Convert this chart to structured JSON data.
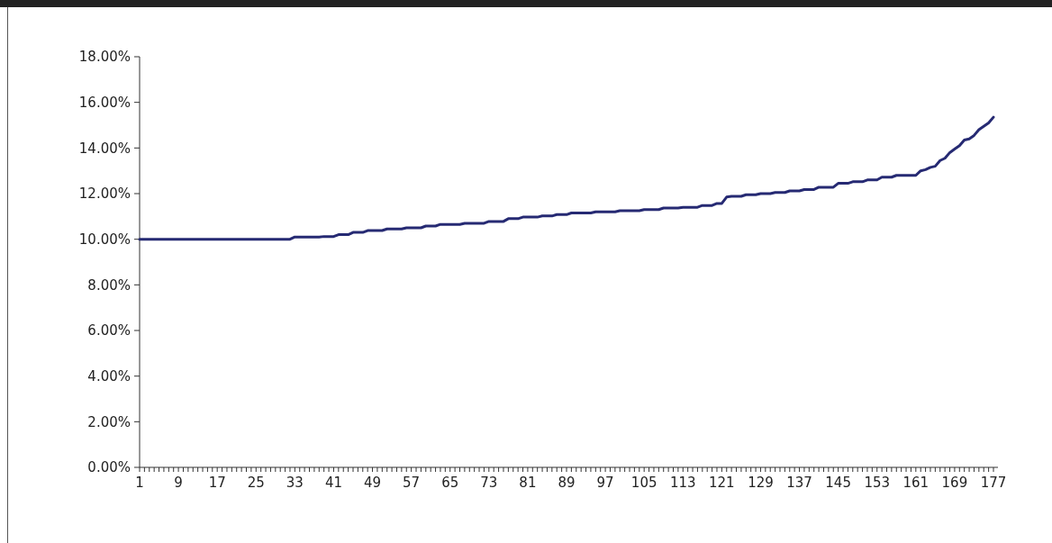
{
  "chart_data": {
    "type": "line",
    "categories": [
      "1",
      null,
      null,
      null,
      null,
      null,
      null,
      null,
      "9",
      null,
      null,
      null,
      null,
      null,
      null,
      null,
      "17",
      null,
      null,
      null,
      null,
      null,
      null,
      null,
      "25",
      null,
      null,
      null,
      null,
      null,
      null,
      null,
      "33",
      null,
      null,
      null,
      null,
      null,
      null,
      null,
      "41",
      null,
      null,
      null,
      null,
      null,
      null,
      null,
      "49",
      null,
      null,
      null,
      null,
      null,
      null,
      null,
      "57",
      null,
      null,
      null,
      null,
      null,
      null,
      null,
      "65",
      null,
      null,
      null,
      null,
      null,
      null,
      null,
      "73",
      null,
      null,
      null,
      null,
      null,
      null,
      null,
      "81",
      null,
      null,
      null,
      null,
      null,
      null,
      null,
      "89",
      null,
      null,
      null,
      null,
      null,
      null,
      null,
      "97",
      null,
      null,
      null,
      null,
      null,
      null,
      null,
      "105",
      null,
      null,
      null,
      null,
      null,
      null,
      null,
      "113",
      null,
      null,
      null,
      null,
      null,
      null,
      null,
      "121",
      null,
      null,
      null,
      null,
      null,
      null,
      null,
      "129",
      null,
      null,
      null,
      null,
      null,
      null,
      null,
      "137",
      null,
      null,
      null,
      null,
      null,
      null,
      null,
      "145",
      null,
      null,
      null,
      null,
      null,
      null,
      null,
      "153",
      null,
      null,
      null,
      null,
      null,
      null,
      null,
      "161",
      null,
      null,
      null,
      null,
      null,
      null,
      null,
      "169",
      null,
      null,
      null,
      null,
      null,
      null,
      null,
      "177"
    ],
    "series": [
      {
        "color": "#262a73",
        "values": [
          10,
          10,
          10,
          10,
          10,
          10,
          10,
          10,
          10,
          10,
          10,
          10,
          10,
          10,
          10,
          10,
          10,
          10,
          10,
          10,
          10,
          10,
          10,
          10,
          10,
          10,
          10,
          10,
          10,
          10,
          10,
          10,
          10.1,
          10.1,
          10.1,
          10.1,
          10.1,
          10.1,
          10.12,
          10.12,
          10.12,
          10.2,
          10.2,
          10.2,
          10.3,
          10.3,
          10.3,
          10.38,
          10.38,
          10.38,
          10.38,
          10.45,
          10.45,
          10.45,
          10.45,
          10.5,
          10.5,
          10.5,
          10.5,
          10.58,
          10.58,
          10.58,
          10.65,
          10.65,
          10.65,
          10.65,
          10.65,
          10.7,
          10.7,
          10.7,
          10.7,
          10.7,
          10.78,
          10.78,
          10.78,
          10.78,
          10.9,
          10.9,
          10.9,
          10.97,
          10.97,
          10.97,
          10.97,
          11.02,
          11.02,
          11.02,
          11.08,
          11.08,
          11.08,
          11.15,
          11.15,
          11.15,
          11.15,
          11.15,
          11.2,
          11.2,
          11.2,
          11.2,
          11.2,
          11.25,
          11.25,
          11.25,
          11.25,
          11.25,
          11.3,
          11.3,
          11.3,
          11.3,
          11.37,
          11.37,
          11.37,
          11.37,
          11.4,
          11.4,
          11.4,
          11.4,
          11.48,
          11.48,
          11.48,
          11.57,
          11.57,
          11.85,
          11.88,
          11.88,
          11.88,
          11.95,
          11.95,
          11.95,
          12,
          12,
          12,
          12.05,
          12.05,
          12.05,
          12.12,
          12.12,
          12.12,
          12.18,
          12.18,
          12.18,
          12.28,
          12.28,
          12.28,
          12.28,
          12.45,
          12.45,
          12.45,
          12.52,
          12.52,
          12.52,
          12.6,
          12.6,
          12.6,
          12.72,
          12.72,
          12.72,
          12.8,
          12.8,
          12.8,
          12.8,
          12.8,
          13,
          13.05,
          13.15,
          13.2,
          13.45,
          13.55,
          13.8,
          13.95,
          14.1,
          14.35,
          14.4,
          14.55,
          14.8,
          14.95,
          15.1,
          15.35
        ]
      }
    ],
    "ylim": [
      0,
      18
    ],
    "yticks": [
      {
        "value": 0,
        "label": "0.00%"
      },
      {
        "value": 2,
        "label": "2.00%"
      },
      {
        "value": 4,
        "label": "4.00%"
      },
      {
        "value": 6,
        "label": "6.00%"
      },
      {
        "value": 8,
        "label": "8.00%"
      },
      {
        "value": 10,
        "label": "10.00%"
      },
      {
        "value": 12,
        "label": "12.00%"
      },
      {
        "value": 14,
        "label": "14.00%"
      },
      {
        "value": 16,
        "label": "16.00%"
      },
      {
        "value": 18,
        "label": "18.00%"
      }
    ],
    "grid": false,
    "marker": "none",
    "line_style": "solid"
  }
}
